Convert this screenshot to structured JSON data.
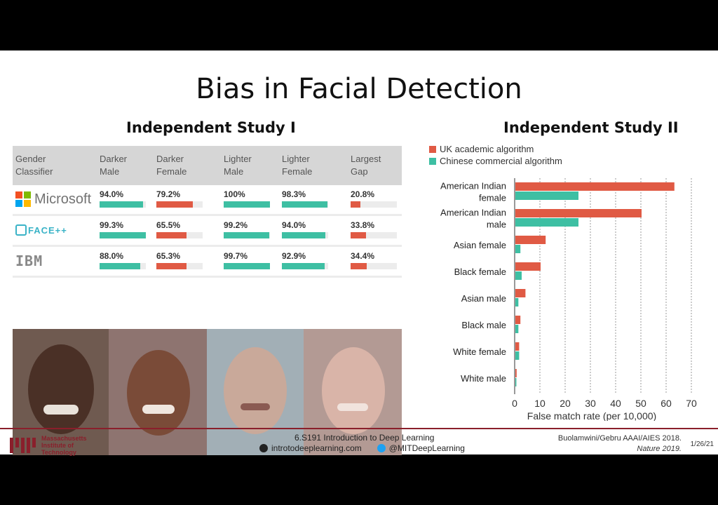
{
  "slide": {
    "title": "Bias in Facial Detection",
    "study1_title": "Independent Study I",
    "study2_title": "Independent Study II"
  },
  "table": {
    "headers": [
      "Gender\nClassifier",
      "Darker\nMale",
      "Darker\nFemale",
      "Lighter\nMale",
      "Lighter\nFemale",
      "Largest\nGap"
    ],
    "rows": [
      {
        "classifier": "Microsoft",
        "logo_icon": "microsoft-logo-icon",
        "values": [
          "94.0%",
          "79.2%",
          "100%",
          "98.3%",
          "20.8%"
        ],
        "levels": [
          94.0,
          79.2,
          100,
          98.3,
          20.8
        ]
      },
      {
        "classifier": "FACE++",
        "logo_icon": "faceplusplus-logo-icon",
        "values": [
          "99.3%",
          "65.5%",
          "99.2%",
          "94.0%",
          "33.8%"
        ],
        "levels": [
          99.3,
          65.5,
          99.2,
          94.0,
          33.8
        ]
      },
      {
        "classifier": "IBM",
        "logo_icon": "ibm-logo-icon",
        "values": [
          "88.0%",
          "65.3%",
          "99.7%",
          "92.9%",
          "34.4%"
        ],
        "levels": [
          88.0,
          65.3,
          99.7,
          92.9,
          34.4
        ]
      }
    ],
    "bar_colors": [
      "#3ebfa3",
      "#e05a44",
      "#3ebfa3",
      "#3ebfa3",
      "#e05a44"
    ],
    "face_images": [
      "average-darker-male-face",
      "average-darker-female-face",
      "average-lighter-male-face",
      "average-lighter-female-face"
    ]
  },
  "chart_data": {
    "type": "bar",
    "orientation": "horizontal",
    "categories": [
      "American Indian\nfemale",
      "American Indian\nmale",
      "Asian female",
      "Black female",
      "Asian male",
      "Black male",
      "White female",
      "White male"
    ],
    "series": [
      {
        "name": "UK academic algorithm",
        "color": "#e05a44",
        "values": [
          63,
          50,
          12,
          10,
          4,
          2,
          1.5,
          0.5
        ]
      },
      {
        "name": "Chinese commercial algorithm",
        "color": "#3ebfa3",
        "values": [
          25,
          25,
          2,
          2.5,
          1.2,
          1.2,
          1.5,
          0.4
        ]
      }
    ],
    "xlabel": "False match rate (per 10,000)",
    "ticks": [
      0,
      10,
      20,
      30,
      40,
      50,
      60,
      70
    ],
    "xlim": [
      0,
      70
    ],
    "grid": true,
    "legend": "top-left"
  },
  "footer": {
    "institution": "Massachusetts\nInstitute of\nTechnology",
    "course": "6.S191 Introduction to Deep Learning",
    "website": "introtodeeplearning.com",
    "twitter": "@MITDeepLearning",
    "cite1": "Buolamwini/Gebru AAAI/AIES 2018.",
    "cite2": "Nature 2019.",
    "date": "1/26/21"
  }
}
